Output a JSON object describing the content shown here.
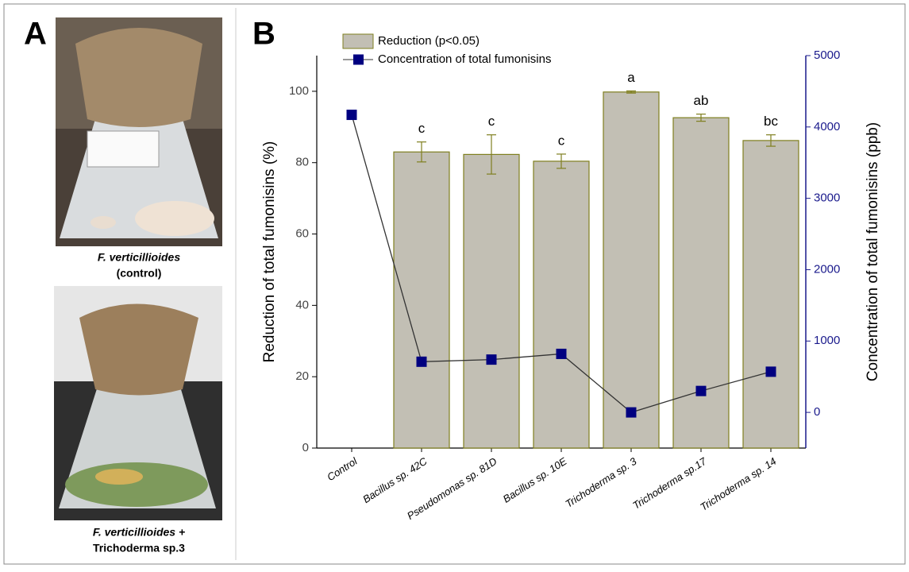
{
  "panel_a": {
    "label": "A",
    "captions": [
      [
        "F. verticillioides",
        "(control)"
      ],
      [
        "F. verticillioides +",
        "Trichoderma sp.3"
      ]
    ]
  },
  "panel_b_label": "B",
  "chart_data": {
    "type": "bar",
    "categories": [
      "Control",
      "Bacillus sp. 42C",
      "Pseudomonas sp. 81D",
      "Bacillus sp. 10E",
      "Trichoderma sp. 3",
      "Trichoderma sp.17",
      "Trichoderma sp. 14"
    ],
    "series": [
      {
        "name": "Reduction (p<0.05)",
        "type": "bar",
        "color": "#c2bfb4",
        "edge_color": "#7f7f1f",
        "values": [
          null,
          83,
          82.3,
          80.4,
          99.8,
          92.6,
          86.2
        ],
        "errors": [
          null,
          2.8,
          5.5,
          2,
          0.3,
          1,
          1.6
        ],
        "letters": [
          null,
          "c",
          "c",
          "c",
          "a",
          "ab",
          "bc"
        ]
      },
      {
        "name": "Concentration of total fumonisins",
        "type": "line",
        "axis": "y2",
        "color": "#000080",
        "line_color": "#333333",
        "values": [
          4170,
          710,
          740,
          820,
          0,
          300,
          570
        ]
      }
    ],
    "ylabel": "Reduction of total fumonisins (%)",
    "y2label": "Concentration of total fumonisins (ppb)",
    "ylim": [
      0,
      110
    ],
    "yticks": [
      0,
      20,
      40,
      60,
      80,
      100
    ],
    "y2lim": [
      -500,
      5000
    ],
    "y2ticks": [
      0,
      1000,
      2000,
      3000,
      4000,
      5000
    ],
    "y2_color": "#1a1a8c"
  }
}
